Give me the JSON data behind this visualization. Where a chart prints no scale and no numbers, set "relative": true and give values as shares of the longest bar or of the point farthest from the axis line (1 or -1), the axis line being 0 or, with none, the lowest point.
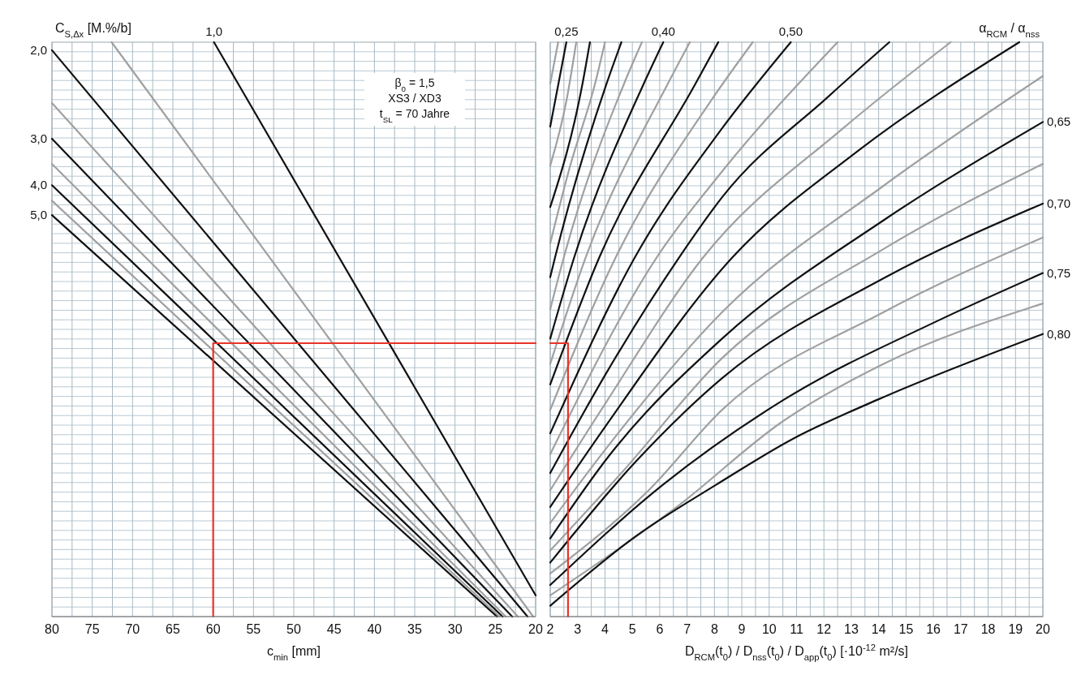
{
  "chart_data": [
    {
      "type": "line",
      "relative": true,
      "xlabel": "c$_{min}$ [mm]",
      "ylabel": "C$_{S,Δx}$ [M.%/b]",
      "xlim": [
        80,
        20
      ],
      "xticks": [
        80,
        75,
        70,
        65,
        60,
        55,
        50,
        45,
        40,
        35,
        30,
        25,
        20
      ],
      "grid": true,
      "annotations": [
        "β$_{0}$ = 1,5",
        "XS3 / XD3",
        "t$_{SL}$ = 70 Jahre"
      ],
      "series": [
        {
          "name": "1,0",
          "color": "#111111",
          "x": [
            59.9,
            20
          ],
          "values": [
            1,
            0.037
          ]
        },
        {
          "color": "#a0a0a0",
          "x": [
            72.6,
            20.3
          ],
          "values": [
            1,
            0
          ]
        },
        {
          "name": "2,0",
          "color": "#111111",
          "x": [
            80,
            21.0
          ],
          "values": [
            0.986,
            0
          ]
        },
        {
          "color": "#a0a0a0",
          "x": [
            80,
            22.2
          ],
          "values": [
            0.894,
            0
          ]
        },
        {
          "name": "3,0",
          "color": "#111111",
          "x": [
            80,
            22.9
          ],
          "values": [
            0.832,
            0
          ]
        },
        {
          "color": "#a0a0a0",
          "x": [
            80,
            23.7
          ],
          "values": [
            0.788,
            0
          ]
        },
        {
          "name": "4,0",
          "color": "#111111",
          "x": [
            80,
            24.1
          ],
          "values": [
            0.751,
            0
          ]
        },
        {
          "color": "#a0a0a0",
          "x": [
            80,
            24.5
          ],
          "values": [
            0.724,
            0
          ]
        },
        {
          "name": "5,0",
          "color": "#111111",
          "x": [
            80,
            24.8
          ],
          "values": [
            0.699,
            0
          ]
        },
        {
          "color": "#e8342a",
          "x": [
            60,
            60,
            20
          ],
          "values": [
            0,
            0.476,
            0.476
          ]
        }
      ]
    },
    {
      "type": "line",
      "relative": true,
      "xlabel": "D$_{RCM}$(t$_{0}$) / D$_{nss}$(t$_{0}$) / D$_{app}$(t$_{0}$) [·10$^{-12}$ m²/s]",
      "ylabel": "α$_{RCM}$ / α$_{nss}$",
      "xlim": [
        2,
        20
      ],
      "xticks": [
        2,
        3,
        4,
        5,
        6,
        7,
        8,
        9,
        10,
        11,
        12,
        13,
        14,
        15,
        16,
        17,
        18,
        19,
        20
      ],
      "grid": true,
      "series": [
        {
          "color": "#a0a0a0",
          "x": [
            2,
            2.29
          ],
          "values": [
            0.928,
            1
          ]
        },
        {
          "name": "0,25",
          "color": "#111111",
          "x": [
            2,
            2.59
          ],
          "values": [
            0.853,
            1
          ]
        },
        {
          "color": "#a0a0a0",
          "x": [
            2,
            2.6,
            2.95
          ],
          "values": [
            0.785,
            0.9,
            1
          ]
        },
        {
          "color": "#111111",
          "x": [
            2,
            3.18,
            3.45
          ],
          "values": [
            0.713,
            0.928,
            1
          ]
        },
        {
          "color": "#a0a0a0",
          "x": [
            2,
            2.7,
            3.65,
            4.0
          ],
          "values": [
            0.65,
            0.78,
            0.93,
            1
          ]
        },
        {
          "color": "#111111",
          "x": [
            2,
            2.18,
            4.06,
            4.6
          ],
          "values": [
            0.591,
            0.626,
            0.928,
            1
          ]
        },
        {
          "color": "#a0a0a0",
          "x": [
            2,
            2.5,
            4.7,
            5.35
          ],
          "values": [
            0.535,
            0.626,
            0.928,
            1
          ]
        },
        {
          "name": "0,40",
          "color": "#111111",
          "x": [
            2,
            2.88,
            5.42,
            6.13
          ],
          "values": [
            0.484,
            0.626,
            0.928,
            1
          ]
        },
        {
          "color": "#a0a0a0",
          "x": [
            2,
            3.3,
            6.3,
            7.1
          ],
          "values": [
            0.44,
            0.626,
            0.928,
            1
          ]
        },
        {
          "color": "#111111",
          "x": [
            2,
            3.8,
            7.31,
            8.14
          ],
          "values": [
            0.404,
            0.626,
            0.928,
            1
          ]
        },
        {
          "color": "#a0a0a0",
          "x": [
            2,
            4.4,
            7.9,
            9.4
          ],
          "values": [
            0.36,
            0.626,
            0.9,
            1
          ]
        },
        {
          "name": "0,50",
          "color": "#111111",
          "x": [
            2,
            5.1,
            8.28,
            10.79
          ],
          "values": [
            0.319,
            0.626,
            0.85,
            1
          ]
        },
        {
          "color": "#a0a0a0",
          "x": [
            2,
            5.9,
            8.28,
            12.5
          ],
          "values": [
            0.283,
            0.626,
            0.775,
            1
          ]
        },
        {
          "color": "#111111",
          "x": [
            2,
            4,
            6.72,
            8.28,
            12.2,
            14.39
          ],
          "values": [
            0.25,
            0.42,
            0.626,
            0.73,
            0.907,
            1
          ]
        },
        {
          "color": "#a0a0a0",
          "x": [
            2,
            4,
            7.6,
            12.7,
            16.63
          ],
          "values": [
            0.22,
            0.37,
            0.626,
            0.85,
            1
          ]
        },
        {
          "color": "#111111",
          "x": [
            2,
            4,
            8.67,
            13.2,
            19.14
          ],
          "values": [
            0.191,
            0.33,
            0.626,
            0.809,
            1
          ]
        },
        {
          "color": "#a0a0a0",
          "x": [
            2,
            4,
            8.28,
            14.18,
            20
          ],
          "values": [
            0.163,
            0.29,
            0.53,
            0.75,
            0.941
          ]
        },
        {
          "name": "0,65",
          "color": "#111111",
          "x": [
            2,
            4.15,
            8.28,
            14.18,
            20
          ],
          "values": [
            0.136,
            0.28,
            0.484,
            0.69,
            0.861
          ]
        },
        {
          "color": "#a0a0a0",
          "x": [
            2,
            4.6,
            8.28,
            14.18,
            20
          ],
          "values": [
            0.115,
            0.25,
            0.45,
            0.64,
            0.788
          ]
        },
        {
          "name": "0,70",
          "color": "#111111",
          "x": [
            2,
            5.13,
            8.28,
            14.18,
            20
          ],
          "values": [
            0.094,
            0.27,
            0.415,
            0.589,
            0.719
          ]
        },
        {
          "color": "#a0a0a0",
          "x": [
            2,
            5.6,
            8.28,
            14.18,
            20
          ],
          "values": [
            0.075,
            0.22,
            0.36,
            0.53,
            0.66
          ]
        },
        {
          "name": "0,75",
          "color": "#111111",
          "x": [
            2,
            6.13,
            10.55,
            16.16,
            20
          ],
          "values": [
            0.055,
            0.23,
            0.378,
            0.515,
            0.598
          ]
        },
        {
          "color": "#a0a0a0",
          "x": [
            2,
            6.6,
            10.5,
            14.18,
            20
          ],
          "values": [
            0.037,
            0.19,
            0.34,
            0.44,
            0.545
          ]
        },
        {
          "name": "0,80",
          "color": "#111111",
          "x": [
            2,
            5.13,
            8.08,
            10.85,
            13.98,
            20
          ],
          "values": [
            0.019,
            0.14,
            0.23,
            0.309,
            0.378,
            0.492
          ]
        },
        {
          "color": "#e8342a",
          "x": [
            2,
            2.65,
            2.65
          ],
          "values": [
            0.476,
            0.476,
            0
          ]
        }
      ]
    }
  ]
}
